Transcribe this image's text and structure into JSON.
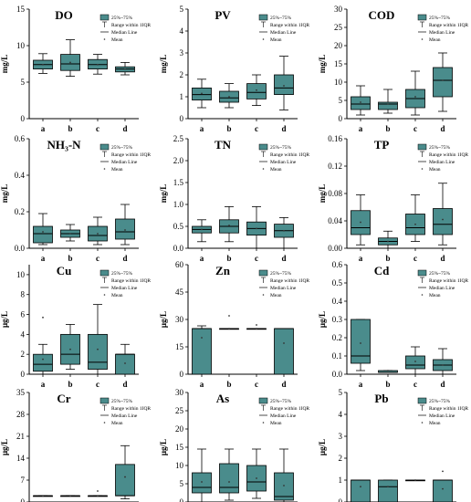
{
  "chart_data": [
    {
      "type": "box",
      "title": "DO",
      "ylabel": "mg/L",
      "ylim": [
        0,
        15
      ],
      "yticks": [
        0,
        5,
        10,
        15
      ],
      "categories": [
        "a",
        "b",
        "c",
        "d"
      ],
      "boxes": [
        {
          "min": 6.2,
          "q1": 6.8,
          "median": 7.4,
          "q3": 8.0,
          "max": 8.9,
          "mean": 7.4
        },
        {
          "min": 5.8,
          "q1": 6.6,
          "median": 7.5,
          "q3": 8.8,
          "max": 10.8,
          "mean": 7.7
        },
        {
          "min": 6.1,
          "q1": 6.8,
          "median": 7.4,
          "q3": 8.1,
          "max": 8.8,
          "mean": 7.4
        },
        {
          "min": 6.0,
          "q1": 6.4,
          "median": 6.8,
          "q3": 7.1,
          "max": 7.7,
          "mean": 6.8
        }
      ]
    },
    {
      "type": "box",
      "title": "PV",
      "ylabel": "mg/L",
      "ylim": [
        0,
        5
      ],
      "yticks": [
        0,
        1,
        2,
        3,
        4,
        5
      ],
      "categories": [
        "a",
        "b",
        "c",
        "d"
      ],
      "boxes": [
        {
          "min": 0.5,
          "q1": 0.85,
          "median": 1.1,
          "q3": 1.4,
          "max": 1.8,
          "mean": 1.15
        },
        {
          "min": 0.5,
          "q1": 0.75,
          "median": 0.95,
          "q3": 1.25,
          "max": 1.6,
          "mean": 1.0
        },
        {
          "min": 0.6,
          "q1": 0.9,
          "median": 1.2,
          "q3": 1.6,
          "max": 2.0,
          "mean": 1.3
        },
        {
          "min": 0.4,
          "q1": 1.1,
          "median": 1.4,
          "q3": 2.0,
          "max": 2.85,
          "mean": 1.5
        }
      ]
    },
    {
      "type": "box",
      "title": "COD",
      "ylabel": "mg/L",
      "ylim": [
        0,
        30
      ],
      "yticks": [
        0,
        5,
        10,
        15,
        20,
        25,
        30
      ],
      "categories": [
        "a",
        "b",
        "c",
        "d"
      ],
      "boxes": [
        {
          "min": 1.0,
          "q1": 2.5,
          "median": 4.0,
          "q3": 6.0,
          "max": 9.0,
          "mean": 4.5
        },
        {
          "min": 1.5,
          "q1": 2.5,
          "median": 4.0,
          "q3": 4.5,
          "max": 8.0,
          "mean": 4.0
        },
        {
          "min": 1.0,
          "q1": 3.0,
          "median": 5.5,
          "q3": 8.0,
          "max": 13.0,
          "mean": 6.0
        },
        {
          "min": 2.0,
          "q1": 6.0,
          "median": 10.5,
          "q3": 14.0,
          "max": 18.0,
          "mean": 10.5
        }
      ]
    },
    {
      "type": "box",
      "title": "NH₃-N",
      "ylabel": "mg/L",
      "ylim": [
        0,
        0.6
      ],
      "yticks": [
        0.0,
        0.2,
        0.4,
        0.6
      ],
      "categories": [
        "a",
        "b",
        "c",
        "d"
      ],
      "boxes": [
        {
          "min": 0.02,
          "q1": 0.03,
          "median": 0.08,
          "q3": 0.12,
          "max": 0.19,
          "mean": 0.09
        },
        {
          "min": 0.04,
          "q1": 0.06,
          "median": 0.08,
          "q3": 0.1,
          "max": 0.13,
          "mean": 0.08
        },
        {
          "min": 0.02,
          "q1": 0.04,
          "median": 0.07,
          "q3": 0.12,
          "max": 0.17,
          "mean": 0.08
        },
        {
          "min": 0.02,
          "q1": 0.05,
          "median": 0.09,
          "q3": 0.16,
          "max": 0.24,
          "mean": 0.1
        }
      ]
    },
    {
      "type": "box",
      "title": "TN",
      "ylabel": "mg/L",
      "ylim": [
        0,
        2.5
      ],
      "yticks": [
        0.0,
        0.5,
        1.0,
        1.5,
        2.0,
        2.5
      ],
      "categories": [
        "a",
        "b",
        "c",
        "d"
      ],
      "boxes": [
        {
          "min": 0.15,
          "q1": 0.35,
          "median": 0.43,
          "q3": 0.5,
          "max": 0.65,
          "mean": 0.43
        },
        {
          "min": 0.15,
          "q1": 0.35,
          "median": 0.5,
          "q3": 0.65,
          "max": 0.95,
          "mean": 0.52
        },
        {
          "min": 0.0,
          "q1": 0.3,
          "median": 0.45,
          "q3": 0.6,
          "max": 0.95,
          "mean": 0.45
        },
        {
          "min": 0.0,
          "q1": 0.25,
          "median": 0.4,
          "q3": 0.55,
          "max": 0.7,
          "mean": 0.4
        }
      ]
    },
    {
      "type": "box",
      "title": "TP",
      "ylabel": "mg/L",
      "ylim": [
        0,
        0.16
      ],
      "yticks": [
        0.0,
        0.04,
        0.08,
        0.12,
        0.16
      ],
      "categories": [
        "a",
        "b",
        "c",
        "d"
      ],
      "boxes": [
        {
          "min": 0.005,
          "q1": 0.02,
          "median": 0.03,
          "q3": 0.055,
          "max": 0.078,
          "mean": 0.038
        },
        {
          "min": 0.0,
          "q1": 0.005,
          "median": 0.01,
          "q3": 0.015,
          "max": 0.025,
          "mean": 0.01
        },
        {
          "min": 0.01,
          "q1": 0.02,
          "median": 0.03,
          "q3": 0.05,
          "max": 0.078,
          "mean": 0.035
        },
        {
          "min": 0.005,
          "q1": 0.02,
          "median": 0.035,
          "q3": 0.058,
          "max": 0.095,
          "mean": 0.042
        }
      ]
    },
    {
      "type": "box",
      "title": "Cu",
      "ylabel": "μg/L",
      "ylim": [
        0,
        11
      ],
      "yticks": [
        0,
        2,
        4,
        6,
        8,
        10
      ],
      "categories": [
        "a",
        "b",
        "c",
        "d"
      ],
      "boxes": [
        {
          "min": 0.0,
          "q1": 0.3,
          "median": 1.0,
          "q3": 2.0,
          "max": 3.0,
          "mean": 1.5,
          "outliers": [
            5.7
          ]
        },
        {
          "min": 0.5,
          "q1": 1.0,
          "median": 2.0,
          "q3": 4.0,
          "max": 5.0,
          "mean": 2.5
        },
        {
          "min": 0.0,
          "q1": 0.5,
          "median": 1.2,
          "q3": 4.0,
          "max": 7.0,
          "mean": 2.5
        },
        {
          "min": 0.0,
          "q1": 0.0,
          "median": 2.0,
          "q3": 2.0,
          "max": 3.0,
          "mean": 1.1
        }
      ]
    },
    {
      "type": "box",
      "title": "Zn",
      "ylabel": "μg/L",
      "ylim": [
        0,
        60
      ],
      "yticks": [
        0,
        15,
        30,
        45,
        60
      ],
      "categories": [
        "a",
        "b",
        "c",
        "d"
      ],
      "boxes": [
        {
          "min": 0.0,
          "q1": 0.0,
          "median": 25.0,
          "q3": 25.0,
          "max": 26.5,
          "mean": 20.0
        },
        {
          "min": 25.0,
          "q1": 25.0,
          "median": 25.0,
          "q3": 25.0,
          "max": 25.0,
          "mean": 25.0,
          "outliers": [
            32.0
          ]
        },
        {
          "min": 25.0,
          "q1": 25.0,
          "median": 25.0,
          "q3": 25.0,
          "max": 25.0,
          "mean": 25.0,
          "outliers": [
            27.0
          ]
        },
        {
          "min": 0.0,
          "q1": 0.0,
          "median": 25.0,
          "q3": 25.0,
          "max": 25.0,
          "mean": 17.0
        }
      ]
    },
    {
      "type": "box",
      "title": "Cd",
      "ylabel": "μg/L",
      "ylim": [
        0,
        0.6
      ],
      "yticks": [
        0.0,
        0.1,
        0.2,
        0.3,
        0.4,
        0.5,
        0.6
      ],
      "categories": [
        "a",
        "b",
        "c",
        "d"
      ],
      "boxes": [
        {
          "min": 0.02,
          "q1": 0.06,
          "median": 0.1,
          "q3": 0.3,
          "max": 0.3,
          "mean": 0.17
        },
        {
          "min": 0.01,
          "q1": 0.01,
          "median": 0.01,
          "q3": 0.02,
          "max": 0.02,
          "mean": 0.02
        },
        {
          "min": 0.0,
          "q1": 0.03,
          "median": 0.05,
          "q3": 0.1,
          "max": 0.15,
          "mean": 0.07
        },
        {
          "min": 0.0,
          "q1": 0.02,
          "median": 0.05,
          "q3": 0.08,
          "max": 0.14,
          "mean": 0.05
        }
      ]
    },
    {
      "type": "box",
      "title": "Cr",
      "ylabel": "μg/L",
      "ylim": [
        0,
        35
      ],
      "yticks": [
        0,
        7,
        14,
        21,
        28,
        35
      ],
      "categories": [
        "a",
        "b",
        "c",
        "d"
      ],
      "boxes": [
        {
          "min": 2.0,
          "q1": 2.0,
          "median": 2.0,
          "q3": 2.0,
          "max": 2.0,
          "mean": 2.0
        },
        {
          "min": 2.0,
          "q1": 2.0,
          "median": 2.0,
          "q3": 2.0,
          "max": 2.0,
          "mean": 2.0
        },
        {
          "min": 2.0,
          "q1": 2.0,
          "median": 2.0,
          "q3": 2.0,
          "max": 2.0,
          "mean": 2.0,
          "outliers": [
            3.5
          ]
        },
        {
          "min": 1.0,
          "q1": 2.0,
          "median": 2.0,
          "q3": 12.0,
          "max": 18.0,
          "mean": 8.0
        }
      ]
    },
    {
      "type": "box",
      "title": "As",
      "ylabel": "μg/L",
      "ylim": [
        0,
        30
      ],
      "yticks": [
        0,
        5,
        10,
        15,
        20,
        25,
        30
      ],
      "categories": [
        "a",
        "b",
        "c",
        "d"
      ],
      "boxes": [
        {
          "min": 0.0,
          "q1": 2.5,
          "median": 4.0,
          "q3": 8.0,
          "max": 14.5,
          "mean": 5.5
        },
        {
          "min": 0.5,
          "q1": 2.5,
          "median": 4.0,
          "q3": 10.5,
          "max": 14.5,
          "mean": 5.5
        },
        {
          "min": 1.0,
          "q1": 3.0,
          "median": 5.5,
          "q3": 10.0,
          "max": 14.5,
          "mean": 6.5
        },
        {
          "min": 0.0,
          "q1": 0.5,
          "median": 1.5,
          "q3": 8.0,
          "max": 14.5,
          "mean": 4.5
        }
      ]
    },
    {
      "type": "box",
      "title": "Pb",
      "ylabel": "μg/L",
      "ylim": [
        0,
        5
      ],
      "yticks": [
        0,
        1,
        2,
        3,
        4,
        5
      ],
      "categories": [
        "a",
        "b",
        "c",
        "d"
      ],
      "boxes": [
        {
          "min": 0.0,
          "q1": 0.0,
          "median": 1.0,
          "q3": 1.0,
          "max": 1.0,
          "mean": 0.7
        },
        {
          "min": 0.0,
          "q1": 0.0,
          "median": 0.7,
          "q3": 1.0,
          "max": 1.0,
          "mean": 0.7
        },
        {
          "min": 1.0,
          "q1": 1.0,
          "median": 1.0,
          "q3": 1.0,
          "max": 1.0,
          "mean": 1.0
        },
        {
          "min": 0.0,
          "q1": 0.0,
          "median": 1.0,
          "q3": 1.0,
          "max": 1.0,
          "mean": 0.6,
          "outliers": [
            1.4
          ]
        }
      ]
    }
  ],
  "legend": {
    "box_label": "25%~75%",
    "range_label": "Range within 1IQR",
    "median_label": "Median Line",
    "mean_label": "Mean"
  },
  "colors": {
    "box_fill": "#4a8c8c",
    "axis": "#000000"
  }
}
